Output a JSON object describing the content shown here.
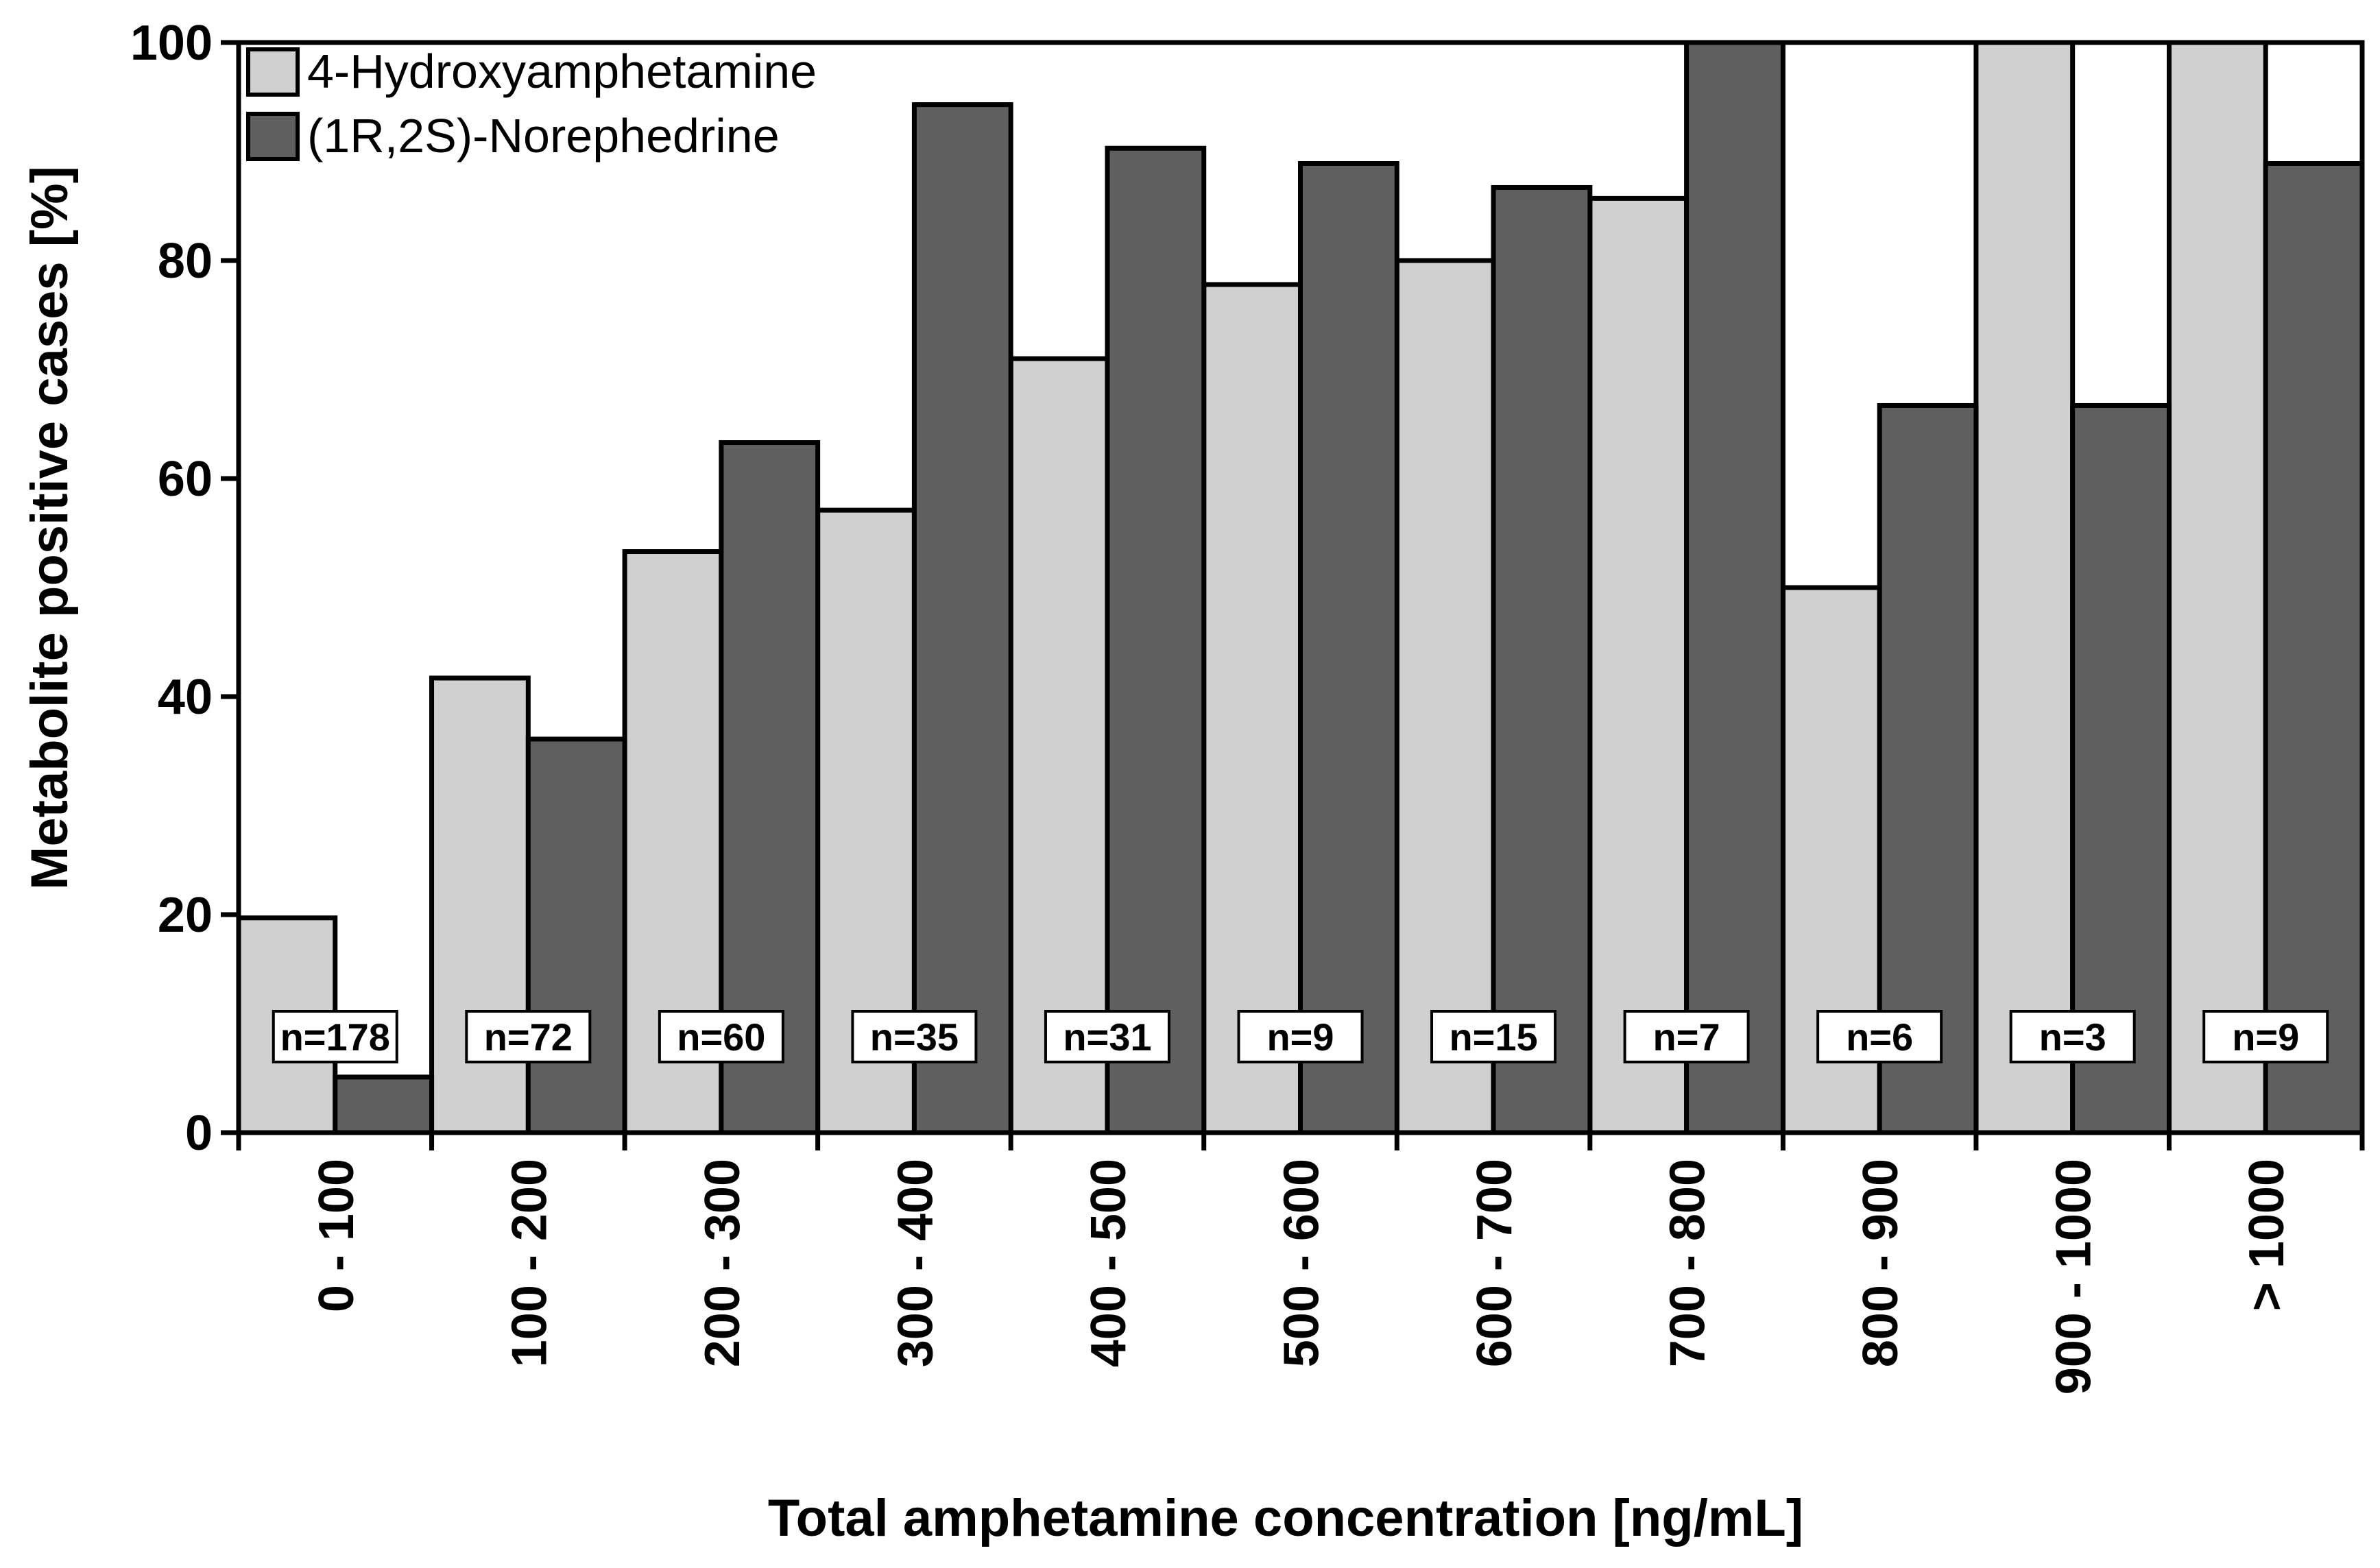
{
  "chart_data": {
    "type": "bar",
    "title": "",
    "xlabel": "Total amphetamine concentration [ng/mL]",
    "ylabel": "Metabolite positive cases [%]",
    "ylim": [
      0,
      100
    ],
    "yticks": [
      "0",
      "20",
      "40",
      "60",
      "80",
      "100"
    ],
    "grid": false,
    "legend_position": "top-left",
    "categories": [
      "0 - 100",
      "100 - 200",
      "200 - 300",
      "300 - 400",
      "400 - 500",
      "500 - 600",
      "600 - 700",
      "700 - 800",
      "800 - 900",
      "900 - 1000",
      "> 1000"
    ],
    "counts": [
      "n=178",
      "n=72",
      "n=60",
      "n=35",
      "n=31",
      "n=9",
      "n=15",
      "n=7",
      "n=6",
      "n=3",
      "n=9"
    ],
    "series": [
      {
        "name": "4-Hydroxyamphetamine",
        "color": "#d0d0d0",
        "values": [
          19.7,
          41.7,
          53.3,
          57.1,
          71.0,
          77.8,
          80.0,
          85.7,
          50.0,
          100.0,
          100.0
        ]
      },
      {
        "name": "(1R,2S)-Norephedrine",
        "color": "#5f5f5f",
        "values": [
          5.1,
          36.1,
          63.3,
          94.3,
          90.3,
          88.9,
          86.7,
          100.0,
          66.7,
          66.7,
          88.9
        ]
      }
    ]
  }
}
